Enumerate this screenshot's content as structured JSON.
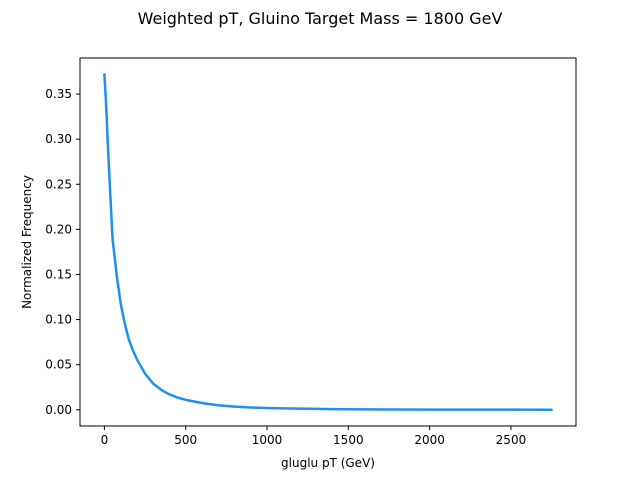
{
  "chart_data": {
    "type": "line",
    "title": "Weighted pT, Gluino Target Mass = 1800 GeV",
    "xlabel": "gluglu pT (GeV)",
    "ylabel": "Normalized Frequency",
    "xlim": [
      -150,
      2900
    ],
    "ylim": [
      -0.018,
      0.39
    ],
    "xticks": [
      0,
      500,
      1000,
      1500,
      2000,
      2500
    ],
    "xtick_labels": [
      "0",
      "500",
      "1000",
      "1500",
      "2000",
      "2500"
    ],
    "yticks": [
      0.0,
      0.05,
      0.1,
      0.15,
      0.2,
      0.25,
      0.3,
      0.35
    ],
    "ytick_labels": [
      "0.00",
      "0.05",
      "0.10",
      "0.15",
      "0.20",
      "0.25",
      "0.30",
      "0.35"
    ],
    "grid": false,
    "series": [
      {
        "color": "#1f8ff0",
        "x": [
          0,
          10,
          25,
          50,
          75,
          100,
          125,
          150,
          175,
          200,
          250,
          300,
          350,
          400,
          450,
          500,
          600,
          700,
          800,
          900,
          1000,
          1100,
          1200,
          1300,
          1400,
          1500,
          1750,
          2000,
          2250,
          2500,
          2750
        ],
        "y": [
          0.372,
          0.34,
          0.28,
          0.19,
          0.15,
          0.118,
          0.096,
          0.078,
          0.066,
          0.056,
          0.04,
          0.029,
          0.022,
          0.017,
          0.0135,
          0.011,
          0.0075,
          0.005,
          0.0035,
          0.0025,
          0.002,
          0.0015,
          0.0012,
          0.001,
          0.0007,
          0.0005,
          0.0003,
          0.0002,
          0.0001,
          0.0001,
          0.0
        ]
      }
    ]
  }
}
